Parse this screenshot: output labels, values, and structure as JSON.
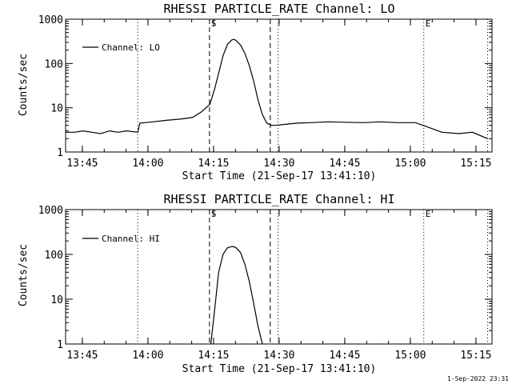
{
  "chart_data": [
    {
      "type": "line",
      "title": "RHESSI PARTICLE_RATE Channel: LO",
      "xlabel": "Start Time (21-Sep-17 13:41:10)",
      "ylabel": "Counts/sec",
      "yscale": "log",
      "ylim": [
        1,
        1000
      ],
      "xlim_minutes": [
        0,
        97.5
      ],
      "x_tick_labels": [
        "13:45",
        "14:00",
        "14:15",
        "14:30",
        "14:45",
        "15:00",
        "15:15"
      ],
      "x_tick_minutes": [
        3.83,
        18.83,
        33.83,
        48.83,
        63.83,
        78.83,
        93.83
      ],
      "y_tick_labels": [
        "1",
        "10",
        "100",
        "1000"
      ],
      "y_tick_values": [
        1,
        10,
        100,
        1000
      ],
      "legend": "Channel: LO",
      "markers": [
        {
          "label": "S",
          "minute": 32.9,
          "style": "dashed"
        },
        {
          "label": "",
          "minute": 46.8,
          "style": "dashed"
        },
        {
          "label": "",
          "minute": 16.5,
          "style": "dotted"
        },
        {
          "label": "",
          "minute": 48.6,
          "style": "dotted"
        },
        {
          "label": "E",
          "minute": 81.9,
          "style": "dotted"
        },
        {
          "label": "",
          "minute": 96.5,
          "style": "dotted"
        }
      ],
      "series": [
        {
          "name": "Channel: LO",
          "x": [
            0,
            2,
            4,
            6,
            8,
            10,
            12,
            14,
            16.5,
            17,
            20,
            23,
            26,
            29,
            31,
            33,
            34,
            35,
            36,
            37,
            38,
            38.5,
            39,
            40,
            41,
            42,
            43,
            44,
            45,
            46,
            47,
            48,
            50,
            53,
            56,
            60,
            64,
            68,
            72,
            76,
            80,
            83,
            86,
            90,
            93,
            96.5
          ],
          "y": [
            2.8,
            2.8,
            3.0,
            2.8,
            2.6,
            3.0,
            2.8,
            3.0,
            2.8,
            4.5,
            4.8,
            5.2,
            5.5,
            6.0,
            8.0,
            12,
            25,
            60,
            150,
            270,
            340,
            350,
            330,
            260,
            170,
            90,
            40,
            15,
            7,
            4.5,
            4.0,
            4.0,
            4.2,
            4.5,
            4.6,
            4.8,
            4.7,
            4.6,
            4.8,
            4.6,
            4.6,
            3.6,
            2.8,
            2.6,
            2.8,
            2.0
          ]
        }
      ]
    },
    {
      "type": "line",
      "title": "RHESSI PARTICLE_RATE Channel: HI",
      "xlabel": "Start Time (21-Sep-17 13:41:10)",
      "ylabel": "Counts/sec",
      "yscale": "log",
      "ylim": [
        1,
        1000
      ],
      "xlim_minutes": [
        0,
        97.5
      ],
      "x_tick_labels": [
        "13:45",
        "14:00",
        "14:15",
        "14:30",
        "14:45",
        "15:00",
        "15:15"
      ],
      "x_tick_minutes": [
        3.83,
        18.83,
        33.83,
        48.83,
        63.83,
        78.83,
        93.83
      ],
      "y_tick_labels": [
        "1",
        "10",
        "100",
        "1000"
      ],
      "y_tick_values": [
        1,
        10,
        100,
        1000
      ],
      "legend": "Channel: HI",
      "markers": [
        {
          "label": "S",
          "minute": 32.9,
          "style": "dashed"
        },
        {
          "label": "",
          "minute": 46.8,
          "style": "dashed"
        },
        {
          "label": "",
          "minute": 16.5,
          "style": "dotted"
        },
        {
          "label": "",
          "minute": 48.6,
          "style": "dotted"
        },
        {
          "label": "E",
          "minute": 81.9,
          "style": "dotted"
        },
        {
          "label": "",
          "minute": 96.5,
          "style": "dotted"
        }
      ],
      "series": [
        {
          "name": "Channel: HI",
          "x": [
            33.2,
            34,
            35,
            36,
            37,
            38,
            38.5,
            39,
            40,
            41,
            42,
            43,
            44,
            45
          ],
          "y": [
            1.0,
            5,
            40,
            100,
            140,
            150,
            148,
            140,
            110,
            60,
            25,
            8,
            2.5,
            1.0
          ]
        }
      ]
    }
  ],
  "footer": {
    "timestamp": "1-Sep-2022 23:31"
  }
}
